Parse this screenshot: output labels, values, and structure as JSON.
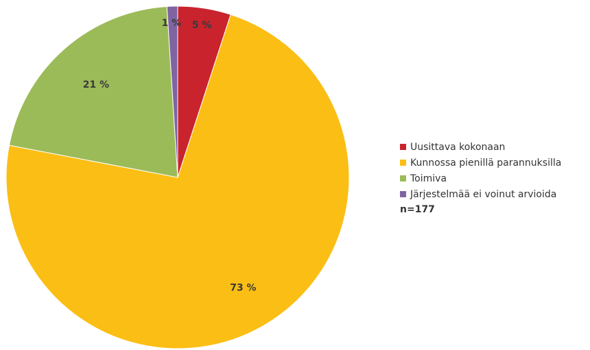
{
  "chart_data": {
    "type": "pie",
    "categories": [
      "Uusittava kokonaan",
      "Kunnossa pienillä parannuksilla",
      "Toimiva",
      "Järjestelmää ei voinut arvioida"
    ],
    "values": [
      5,
      73,
      21,
      1
    ],
    "labels": [
      "5 %",
      "73 %",
      "21 %",
      "1 %"
    ],
    "colors": [
      "#c9232e",
      "#fbbe14",
      "#9bbb59",
      "#8064a2"
    ],
    "legend_placement": "right",
    "note": "n=177"
  }
}
